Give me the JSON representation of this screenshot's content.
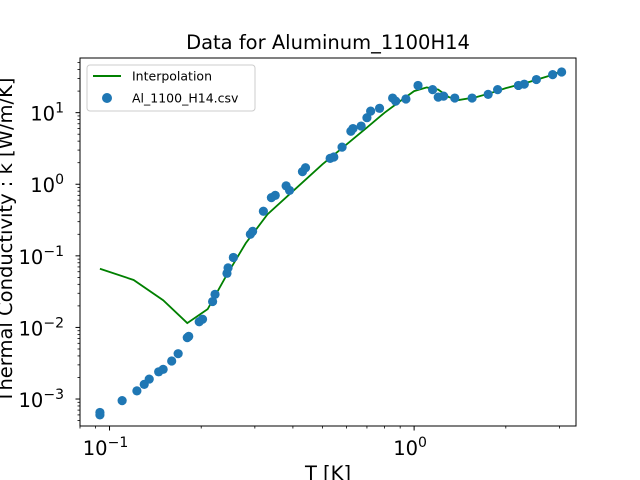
{
  "chart_data": {
    "type": "scatter",
    "title": "Data for Aluminum_1100H14",
    "xlabel": "T [K]",
    "ylabel": "Thermal Conductivity : k [W/m/K]",
    "xscale": "log",
    "yscale": "log",
    "xlim": [
      0.08,
      3.4
    ],
    "ylim": [
      0.00042,
      58
    ],
    "grid": false,
    "legend_position": "upper-left",
    "x_ticks": [
      {
        "value": 0.1,
        "base": "10",
        "exp": "−1"
      },
      {
        "value": 1,
        "base": "10",
        "exp": "0"
      }
    ],
    "y_ticks": [
      {
        "value": 0.001,
        "base": "10",
        "exp": "−3"
      },
      {
        "value": 0.01,
        "base": "10",
        "exp": "−2"
      },
      {
        "value": 0.1,
        "base": "10",
        "exp": "−1"
      },
      {
        "value": 1,
        "base": "10",
        "exp": "0"
      },
      {
        "value": 10,
        "base": "10",
        "exp": "1"
      }
    ],
    "legend": {
      "line_label": "Interpolation",
      "scatter_label": "Al_1100_H14.csv"
    },
    "series": [
      {
        "name": "Interpolation",
        "kind": "line",
        "color": "#008000",
        "points": [
          [
            0.093,
            0.066
          ],
          [
            0.12,
            0.046
          ],
          [
            0.15,
            0.024
          ],
          [
            0.18,
            0.0115
          ],
          [
            0.21,
            0.018
          ],
          [
            0.24,
            0.05
          ],
          [
            0.28,
            0.15
          ],
          [
            0.33,
            0.38
          ],
          [
            0.4,
            0.8
          ],
          [
            0.5,
            1.9
          ],
          [
            0.6,
            3.6
          ],
          [
            0.7,
            6.2
          ],
          [
            0.8,
            10
          ],
          [
            0.9,
            14.5
          ],
          [
            1.0,
            20
          ],
          [
            1.1,
            22.5
          ],
          [
            1.2,
            21
          ],
          [
            1.3,
            16.5
          ],
          [
            1.4,
            15
          ],
          [
            1.6,
            16.5
          ],
          [
            1.8,
            19
          ],
          [
            2.0,
            22
          ],
          [
            2.4,
            27
          ],
          [
            2.8,
            33
          ],
          [
            3.0,
            37
          ]
        ]
      },
      {
        "name": "Al_1100_H14.csv",
        "kind": "scatter",
        "color": "#1f77b4",
        "points": [
          [
            0.093,
            0.00065
          ],
          [
            0.093,
            0.0006
          ],
          [
            0.11,
            0.00095
          ],
          [
            0.123,
            0.0013
          ],
          [
            0.13,
            0.0016
          ],
          [
            0.135,
            0.0019
          ],
          [
            0.145,
            0.0024
          ],
          [
            0.15,
            0.0026
          ],
          [
            0.16,
            0.0034
          ],
          [
            0.168,
            0.0043
          ],
          [
            0.18,
            0.0072
          ],
          [
            0.182,
            0.0075
          ],
          [
            0.197,
            0.012
          ],
          [
            0.202,
            0.013
          ],
          [
            0.218,
            0.023
          ],
          [
            0.222,
            0.029
          ],
          [
            0.243,
            0.057
          ],
          [
            0.245,
            0.068
          ],
          [
            0.255,
            0.095
          ],
          [
            0.29,
            0.2
          ],
          [
            0.295,
            0.22
          ],
          [
            0.32,
            0.42
          ],
          [
            0.34,
            0.65
          ],
          [
            0.35,
            0.7
          ],
          [
            0.38,
            0.95
          ],
          [
            0.39,
            0.82
          ],
          [
            0.43,
            1.5
          ],
          [
            0.44,
            1.7
          ],
          [
            0.53,
            2.3
          ],
          [
            0.545,
            2.4
          ],
          [
            0.58,
            3.3
          ],
          [
            0.62,
            5.5
          ],
          [
            0.63,
            6.0
          ],
          [
            0.67,
            6.5
          ],
          [
            0.7,
            8.5
          ],
          [
            0.72,
            10.5
          ],
          [
            0.77,
            11.5
          ],
          [
            0.85,
            16
          ],
          [
            0.87,
            14.5
          ],
          [
            0.94,
            15.5
          ],
          [
            1.03,
            24
          ],
          [
            1.15,
            21
          ],
          [
            1.2,
            16.5
          ],
          [
            1.25,
            17
          ],
          [
            1.36,
            16
          ],
          [
            1.55,
            16
          ],
          [
            1.75,
            18
          ],
          [
            1.88,
            21
          ],
          [
            2.2,
            24
          ],
          [
            2.3,
            25
          ],
          [
            2.52,
            29
          ],
          [
            2.85,
            34
          ],
          [
            3.05,
            37
          ]
        ]
      }
    ]
  }
}
